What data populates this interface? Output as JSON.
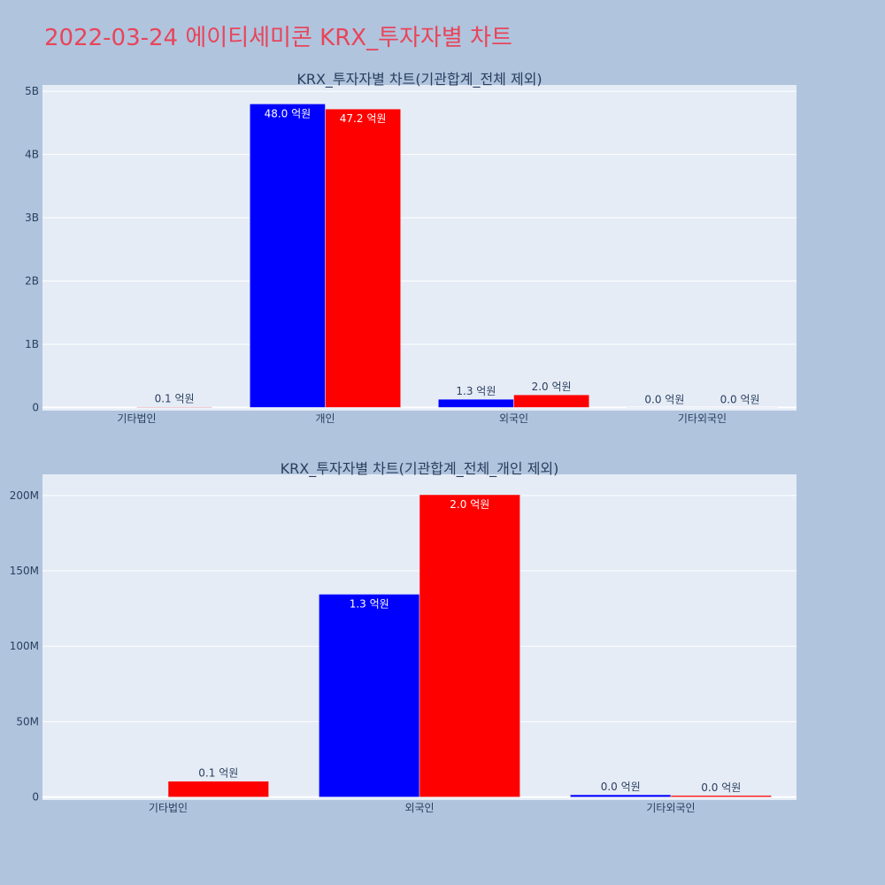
{
  "page": {
    "title": "2022-03-24 에이티세미콘 KRX_투자자별 차트"
  },
  "colors": {
    "background": "#b0c4de",
    "plot_background": "#e5ecf6",
    "title": "#e8455a",
    "series_blue": "#0000ff",
    "series_red": "#ff0000",
    "axis_text": "#2a3f5f"
  },
  "chart_data": [
    {
      "type": "bar",
      "title": "KRX_투자자별 차트(기관합계_전체 제외)",
      "categories": [
        "기타법인",
        "개인",
        "외국인",
        "기타외국인"
      ],
      "series": [
        {
          "color": "#0000ff",
          "values": [
            0,
            4800000000,
            130000000,
            2000000
          ],
          "labels": [
            "",
            "48.0 억원",
            "1.3 억원",
            "0.0 억원"
          ]
        },
        {
          "color": "#ff0000",
          "values": [
            10000000,
            4720000000,
            200000000,
            1000000
          ],
          "labels": [
            "0.1 억원",
            "47.2 억원",
            "2.0 억원",
            "0.0 억원"
          ]
        }
      ],
      "ylim": [
        -50000000,
        5100000000
      ],
      "yticks": [
        0,
        1000000000,
        2000000000,
        3000000000,
        4000000000,
        5000000000
      ],
      "ytick_labels": [
        "0",
        "1B",
        "2B",
        "3B",
        "4B",
        "5B"
      ],
      "grid": true
    },
    {
      "type": "bar",
      "title": "KRX_투자자별 차트(기관합계_전체_개인 제외)",
      "categories": [
        "기타법인",
        "외국인",
        "기타외국인"
      ],
      "series": [
        {
          "color": "#0000ff",
          "values": [
            0,
            134500000,
            1500000
          ],
          "labels": [
            "",
            "1.3 억원",
            "0.0 억원"
          ]
        },
        {
          "color": "#ff0000",
          "values": [
            10500000,
            200500000,
            1000000
          ],
          "labels": [
            "0.1 억원",
            "2.0 억원",
            "0.0 억원"
          ]
        }
      ],
      "ylim": [
        -2000000,
        214000000
      ],
      "yticks": [
        0,
        50000000,
        100000000,
        150000000,
        200000000
      ],
      "ytick_labels": [
        "0",
        "50M",
        "100M",
        "150M",
        "200M"
      ],
      "grid": true
    }
  ]
}
